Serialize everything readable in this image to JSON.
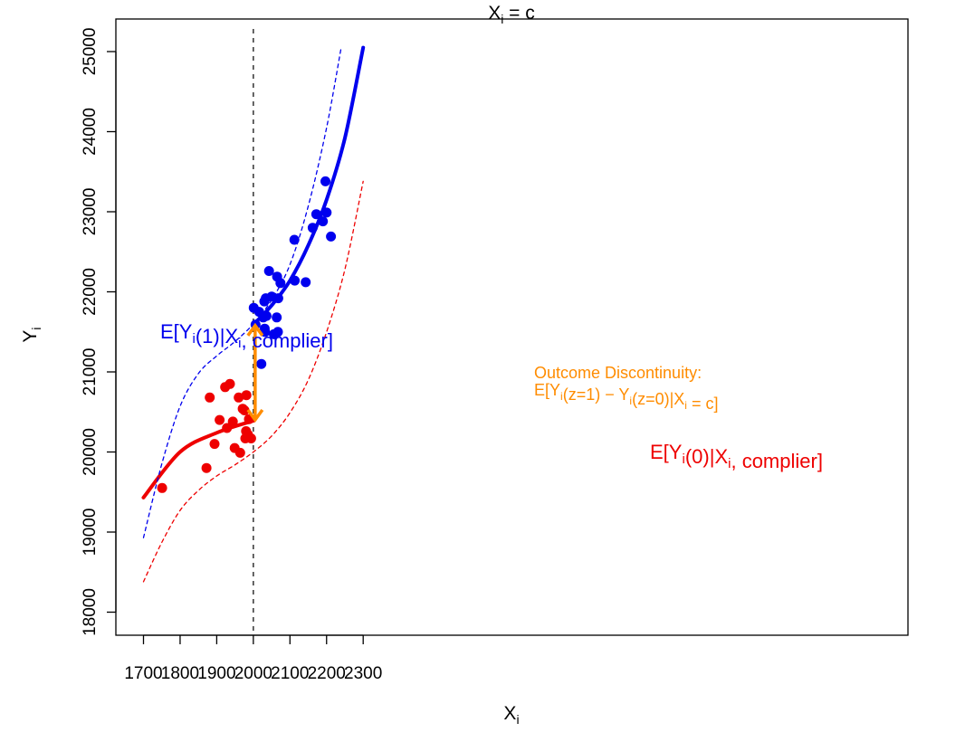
{
  "chart_data": {
    "type": "scatter",
    "title": "",
    "xlabel": "X_i",
    "ylabel": "Y_i",
    "xlim": [
      1680,
      2330
    ],
    "ylim": [
      17850,
      25250
    ],
    "x_ticks": [
      1700,
      1800,
      1900,
      2000,
      2100,
      2200,
      2300
    ],
    "y_ticks": [
      18000,
      19000,
      20000,
      21000,
      22000,
      23000,
      24000,
      25000
    ],
    "cutoff": 2000,
    "cutoff_label": "X_i = c",
    "series": [
      {
        "kind": "points",
        "color": "#ee0000",
        "points": [
          [
            1751,
            19550
          ],
          [
            1872,
            19800
          ],
          [
            1881,
            20680
          ],
          [
            1894,
            20100
          ],
          [
            1908,
            20400
          ],
          [
            1923,
            20810
          ],
          [
            1928,
            20300
          ],
          [
            1936,
            20850
          ],
          [
            1944,
            20380
          ],
          [
            1949,
            20050
          ],
          [
            1960,
            20680
          ],
          [
            1964,
            19990
          ],
          [
            1971,
            20540
          ],
          [
            1976,
            20520
          ],
          [
            1978,
            20170
          ],
          [
            1980,
            20260
          ],
          [
            1981,
            20710
          ],
          [
            1985,
            20220
          ],
          [
            1988,
            20410
          ],
          [
            1994,
            20170
          ]
        ]
      },
      {
        "kind": "points",
        "color": "#0000ee",
        "points": [
          [
            2001,
            21800
          ],
          [
            2006,
            21590
          ],
          [
            2016,
            21750
          ],
          [
            2022,
            21100
          ],
          [
            2027,
            21680
          ],
          [
            2030,
            21880
          ],
          [
            2031,
            21540
          ],
          [
            2032,
            21500
          ],
          [
            2034,
            21920
          ],
          [
            2036,
            21700
          ],
          [
            2043,
            22260
          ],
          [
            2050,
            21940
          ],
          [
            2056,
            21470
          ],
          [
            2064,
            21680
          ],
          [
            2065,
            22190
          ],
          [
            2067,
            21500
          ],
          [
            2068,
            21920
          ],
          [
            2074,
            22110
          ],
          [
            2112,
            22650
          ],
          [
            2113,
            22140
          ],
          [
            2143,
            22120
          ],
          [
            2162,
            22800
          ],
          [
            2172,
            22970
          ],
          [
            2190,
            22880
          ],
          [
            2197,
            23380
          ],
          [
            2200,
            22990
          ],
          [
            2212,
            22690
          ]
        ]
      },
      {
        "kind": "curve",
        "style": "solid",
        "color": "#ee0000",
        "points": [
          [
            1700,
            19430
          ],
          [
            1800,
            20000
          ],
          [
            1900,
            20240
          ],
          [
            2000,
            20390
          ]
        ]
      },
      {
        "kind": "curve",
        "style": "solid",
        "color": "#0000ee",
        "points": [
          [
            2000,
            21590
          ],
          [
            2050,
            21830
          ],
          [
            2100,
            22140
          ],
          [
            2150,
            22580
          ],
          [
            2200,
            23150
          ],
          [
            2250,
            23920
          ],
          [
            2300,
            25050
          ]
        ]
      },
      {
        "kind": "curve",
        "style": "dashed",
        "color": "#0000ee",
        "points": [
          [
            1700,
            18930
          ],
          [
            1750,
            19850
          ],
          [
            1800,
            20570
          ],
          [
            1850,
            20980
          ],
          [
            1900,
            21200
          ],
          [
            1950,
            21380
          ],
          [
            2000,
            21600
          ],
          [
            2050,
            21900
          ],
          [
            2100,
            22340
          ],
          [
            2150,
            23070
          ],
          [
            2200,
            24050
          ],
          [
            2240,
            25050
          ]
        ]
      },
      {
        "kind": "curve",
        "style": "dashed",
        "color": "#ee0000",
        "points": [
          [
            1700,
            18380
          ],
          [
            1750,
            18870
          ],
          [
            1800,
            19270
          ],
          [
            1850,
            19520
          ],
          [
            1900,
            19700
          ],
          [
            1950,
            19840
          ],
          [
            2000,
            20000
          ],
          [
            2050,
            20200
          ],
          [
            2100,
            20490
          ],
          [
            2150,
            20900
          ],
          [
            2200,
            21500
          ],
          [
            2250,
            22280
          ],
          [
            2300,
            23380
          ]
        ]
      }
    ],
    "arrow": {
      "x": 2000,
      "y_from": 20390,
      "y_to": 21590,
      "color": "#ff8c00"
    },
    "annotations": {
      "blue_label": "E[Yi(1)|Xi, complier]",
      "red_label": "E[Yi(0)|Xi, complier]",
      "discontinuity_title": "Outcome Discontinuity:",
      "discontinuity_formula": "E[Yi(z=1) − Yi(z=0)|Xi = c]"
    },
    "colors": {
      "blue": "#0000ee",
      "red": "#ee0000",
      "orange": "#ff8c00"
    }
  }
}
